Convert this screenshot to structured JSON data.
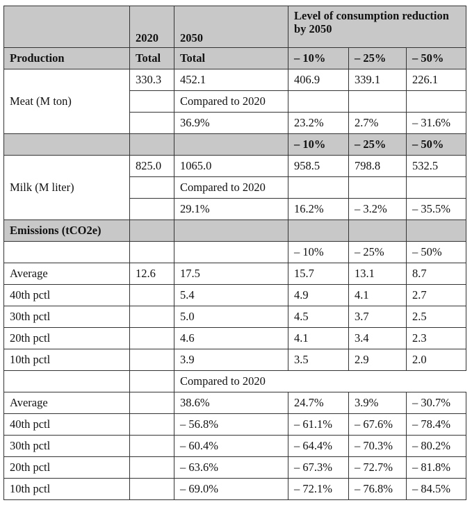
{
  "header": {
    "year2020": "2020",
    "year2050": "2050",
    "level_title": "Level of consumption reduction by 2050",
    "production": "Production",
    "total_2020": "Total",
    "total_2050": "Total",
    "r10": "– 10%",
    "r25": "– 25%",
    "r50": "– 50%"
  },
  "meat": {
    "label": "Meat (M ton)",
    "v2020": "330.3",
    "v2050": "452.1",
    "r10": "406.9",
    "r25": "339.1",
    "r50": "226.1",
    "compared": "Compared to 2020",
    "pct2050": "36.9%",
    "pct10": "23.2%",
    "pct25": "2.7%",
    "pct50": "– 31.6%"
  },
  "milk_header": {
    "r10": "– 10%",
    "r25": "– 25%",
    "r50": "– 50%"
  },
  "milk": {
    "label": "Milk (M liter)",
    "v2020": "825.0",
    "v2050": "1065.0",
    "r10": "958.5",
    "r25": "798.8",
    "r50": "532.5",
    "compared": "Compared to 2020",
    "pct2050": "29.1%",
    "pct10": "16.2%",
    "pct25": "– 3.2%",
    "pct50": "– 35.5%"
  },
  "emissions": {
    "title": "Emissions (tCO2e)",
    "r10": "– 10%",
    "r25": "– 25%",
    "r50": "– 50%",
    "rows": [
      {
        "label": "Average",
        "v2020": "12.6",
        "v2050": "17.5",
        "r10": "15.7",
        "r25": "13.1",
        "r50": "8.7"
      },
      {
        "label": "40th pctl",
        "v2020": "",
        "v2050": "5.4",
        "r10": "4.9",
        "r25": "4.1",
        "r50": "2.7"
      },
      {
        "label": "30th pctl",
        "v2020": "",
        "v2050": "5.0",
        "r10": "4.5",
        "r25": "3.7",
        "r50": "2.5"
      },
      {
        "label": "20th pctl",
        "v2020": "",
        "v2050": "4.6",
        "r10": "4.1",
        "r25": "3.4",
        "r50": "2.3"
      },
      {
        "label": "10th pctl",
        "v2020": "",
        "v2050": "3.9",
        "r10": "3.5",
        "r25": "2.9",
        "r50": "2.0"
      }
    ],
    "compared": "Compared to 2020",
    "pct_rows": [
      {
        "label": "Average",
        "v2050": "38.6%",
        "r10": "24.7%",
        "r25": "3.9%",
        "r50": "– 30.7%"
      },
      {
        "label": "40th pctl",
        "v2050": "– 56.8%",
        "r10": "– 61.1%",
        "r25": "– 67.6%",
        "r50": "– 78.4%"
      },
      {
        "label": "30th pctl",
        "v2050": "– 60.4%",
        "r10": "– 64.4%",
        "r25": "– 70.3%",
        "r50": "– 80.2%"
      },
      {
        "label": "20th pctl",
        "v2050": "– 63.6%",
        "r10": "– 67.3%",
        "r25": "– 72.7%",
        "r50": "– 81.8%"
      },
      {
        "label": "10th pctl",
        "v2050": "– 69.0%",
        "r10": "– 72.1%",
        "r25": "– 76.8%",
        "r50": "– 84.5%"
      }
    ]
  }
}
